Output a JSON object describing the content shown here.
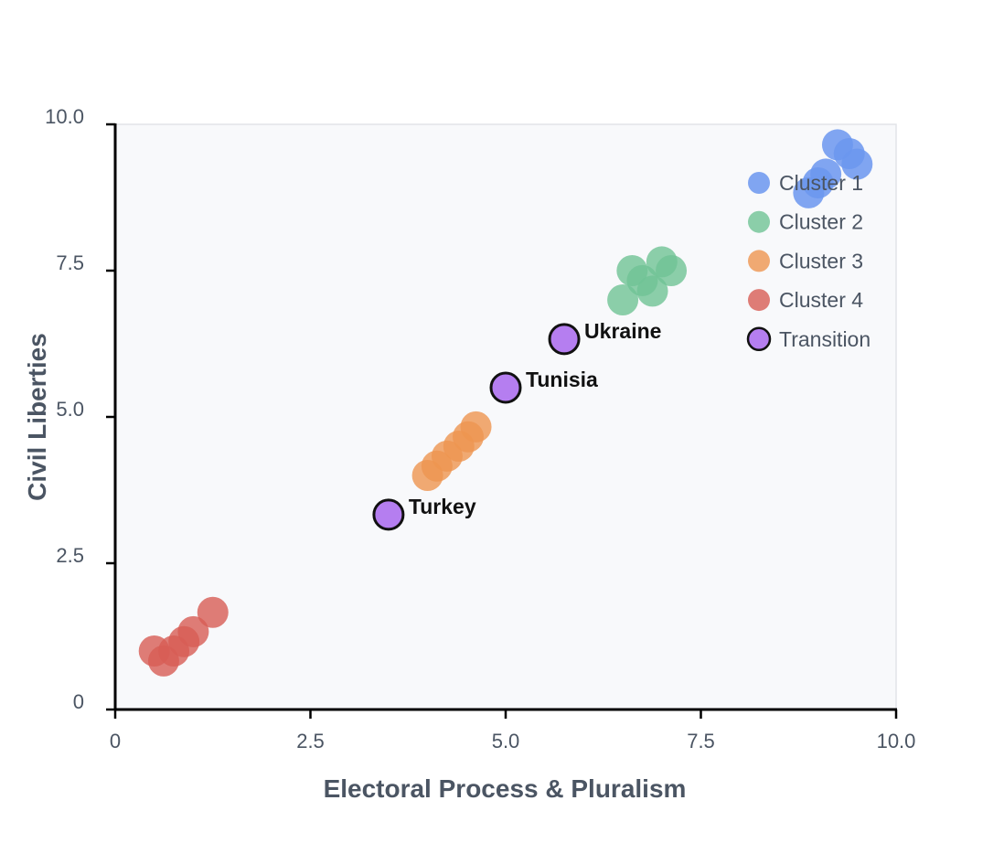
{
  "chart_data": {
    "type": "scatter",
    "title": "",
    "xlabel": "Electoral Process & Pluralism",
    "ylabel": "Civil Liberties",
    "xlim": [
      0,
      10
    ],
    "ylim": [
      0,
      10
    ],
    "x_ticks": [
      {
        "value": 0,
        "label": "0"
      },
      {
        "value": 2.5,
        "label": "2.5"
      },
      {
        "value": 5,
        "label": "5.0"
      },
      {
        "value": 7.5,
        "label": "7.5"
      },
      {
        "value": 10,
        "label": "10.0"
      }
    ],
    "y_ticks": [
      {
        "value": 0,
        "label": "0"
      },
      {
        "value": 2.5,
        "label": "2.5"
      },
      {
        "value": 5,
        "label": "5.0"
      },
      {
        "value": 7.5,
        "label": "7.5"
      },
      {
        "value": 10,
        "label": "10.0"
      }
    ],
    "grid": false,
    "plot_background": "#f8f9fb",
    "legend_position": "top-right",
    "series": [
      {
        "name": "Cluster 1",
        "color": "#6b96ee",
        "opacity": 0.85,
        "points": [
          [
            9.25,
            9.65
          ],
          [
            9.4,
            9.5
          ],
          [
            9.5,
            9.32
          ],
          [
            9.1,
            9.15
          ],
          [
            9.0,
            9.0
          ],
          [
            8.88,
            8.83
          ]
        ]
      },
      {
        "name": "Cluster 2",
        "color": "#6fc395",
        "opacity": 0.8,
        "points": [
          [
            7.0,
            7.65
          ],
          [
            7.12,
            7.5
          ],
          [
            6.62,
            7.5
          ],
          [
            6.75,
            7.33
          ],
          [
            6.88,
            7.15
          ],
          [
            6.5,
            7.0
          ]
        ]
      },
      {
        "name": "Cluster 3",
        "color": "#ee9550",
        "opacity": 0.8,
        "points": [
          [
            4.62,
            4.83
          ],
          [
            4.52,
            4.66
          ],
          [
            4.4,
            4.5
          ],
          [
            4.25,
            4.33
          ],
          [
            4.12,
            4.16
          ],
          [
            4.0,
            4.0
          ]
        ]
      },
      {
        "name": "Cluster 4",
        "color": "#d75c55",
        "opacity": 0.8,
        "points": [
          [
            1.25,
            1.66
          ],
          [
            1.0,
            1.33
          ],
          [
            0.88,
            1.16
          ],
          [
            0.75,
            1.0
          ],
          [
            0.5,
            1.0
          ],
          [
            0.62,
            0.83
          ]
        ]
      },
      {
        "name": "Transition",
        "color": "#b57ef0",
        "stroke": "#111111",
        "opacity": 1,
        "points": [
          [
            3.5,
            3.33
          ],
          [
            5.0,
            5.5
          ],
          [
            5.75,
            6.33
          ]
        ],
        "labels": [
          "Turkey",
          "Tunisia",
          "Ukraine"
        ]
      }
    ]
  }
}
